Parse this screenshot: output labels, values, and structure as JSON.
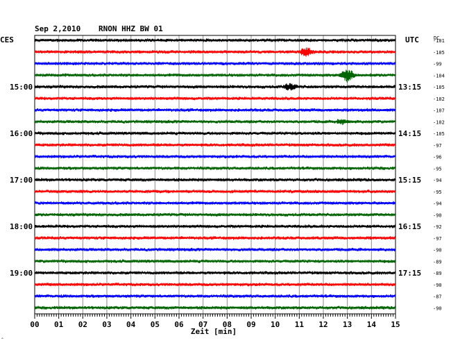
{
  "header": {
    "date": "Sep 2,2010",
    "station": "RNON HHZ BW 01",
    "left_zone": "CES",
    "right_zone": "UTC",
    "dc_label": "DC",
    "corner_mark": "‸"
  },
  "chart_data": {
    "type": "line",
    "title": "Sep 2,2010   RNON HHZ BW 01",
    "xlabel": "Zeit [min]",
    "xlim": [
      0,
      15
    ],
    "x_ticks": [
      "00",
      "01",
      "02",
      "03",
      "04",
      "05",
      "06",
      "07",
      "08",
      "09",
      "10",
      "11",
      "12",
      "13",
      "14",
      "15"
    ],
    "grid": true,
    "trace_colors": [
      "#000000",
      "#ff0000",
      "#0000ff",
      "#006400"
    ],
    "left_time_labels": [
      {
        "trace": 4,
        "label": "15:00"
      },
      {
        "trace": 8,
        "label": "16:00"
      },
      {
        "trace": 12,
        "label": "17:00"
      },
      {
        "trace": 16,
        "label": "18:00"
      },
      {
        "trace": 20,
        "label": "19:00"
      }
    ],
    "right_time_labels": [
      {
        "trace": 4,
        "label": "13:15"
      },
      {
        "trace": 8,
        "label": "14:15"
      },
      {
        "trace": 12,
        "label": "15:15"
      },
      {
        "trace": 16,
        "label": "16:15"
      },
      {
        "trace": 20,
        "label": "17:15"
      }
    ],
    "dc_offsets": [
      -101,
      -105,
      -99,
      -104,
      -105,
      -102,
      -107,
      -102,
      -105,
      -97,
      -96,
      -95,
      -94,
      -95,
      -94,
      -90,
      -92,
      -97,
      -90,
      -89,
      -89,
      -90,
      -87,
      -90
    ],
    "events": [
      {
        "trace": 1,
        "minute": 11.3,
        "amplitude": 1.0
      },
      {
        "trace": 3,
        "minute": 13.0,
        "amplitude": 1.6
      },
      {
        "trace": 4,
        "minute": 10.6,
        "amplitude": 0.8
      },
      {
        "trace": 7,
        "minute": 12.8,
        "amplitude": 0.5
      }
    ]
  }
}
